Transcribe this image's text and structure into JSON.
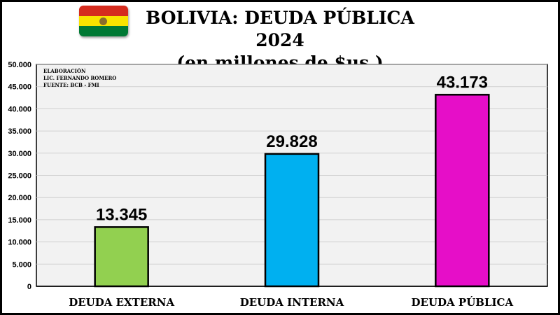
{
  "chart_data": {
    "type": "bar",
    "title": "BOLIVIA: DEUDA PÚBLICA 2024",
    "subtitle": "(en millones de $us.)",
    "categories": [
      "DEUDA EXTERNA",
      "DEUDA INTERNA",
      "DEUDA PÚBLICA"
    ],
    "values": [
      13345,
      29828,
      43173
    ],
    "value_labels": [
      "13.345",
      "29.828",
      "43.173"
    ],
    "colors": [
      "#92d050",
      "#00b0f0",
      "#e60ec8"
    ],
    "ylim": [
      0,
      50000
    ],
    "yticks": [
      0,
      5000,
      10000,
      15000,
      20000,
      25000,
      30000,
      35000,
      40000,
      45000,
      50000
    ],
    "ytick_labels": [
      "0",
      "5.000",
      "10.000",
      "15.000",
      "20.000",
      "25.000",
      "30.000",
      "35.000",
      "40.000",
      "45.000",
      "50.000"
    ],
    "grid": true,
    "xlabel": "",
    "ylabel": ""
  },
  "credits": [
    "ELABORACIÓN",
    "LIC. FERNANDO ROMERO",
    "FUENTE: BCB - FMI"
  ],
  "flag_colors": [
    "#d52b1e",
    "#f9e300",
    "#007934"
  ]
}
